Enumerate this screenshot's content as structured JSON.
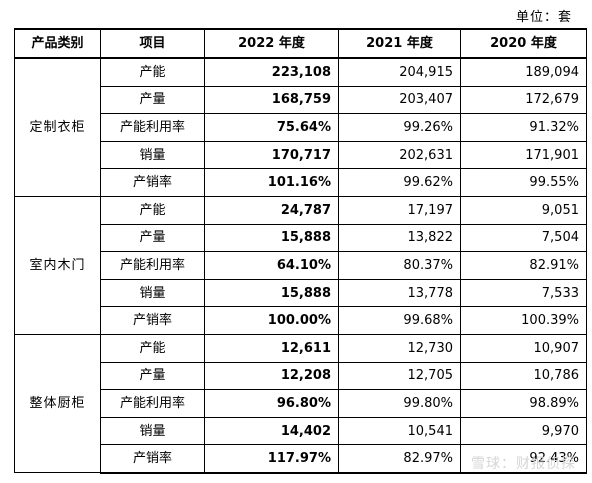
{
  "unit_label": "单位：套",
  "headers": [
    "产品类别",
    "项目",
    "2022 年度",
    "2021 年度",
    "2020 年度"
  ],
  "groups": [
    {
      "category": "定制衣柜",
      "rows": [
        {
          "item": "产能",
          "y2022": "223,108",
          "y2021": "204,915",
          "y2020": "189,094"
        },
        {
          "item": "产量",
          "y2022": "168,759",
          "y2021": "203,407",
          "y2020": "172,679"
        },
        {
          "item": "产能利用率",
          "y2022": "75.64%",
          "y2021": "99.26%",
          "y2020": "91.32%"
        },
        {
          "item": "销量",
          "y2022": "170,717",
          "y2021": "202,631",
          "y2020": "171,901"
        },
        {
          "item": "产销率",
          "y2022": "101.16%",
          "y2021": "99.62%",
          "y2020": "99.55%"
        }
      ]
    },
    {
      "category": "室内木门",
      "rows": [
        {
          "item": "产能",
          "y2022": "24,787",
          "y2021": "17,197",
          "y2020": "9,051"
        },
        {
          "item": "产量",
          "y2022": "15,888",
          "y2021": "13,822",
          "y2020": "7,504"
        },
        {
          "item": "产能利用率",
          "y2022": "64.10%",
          "y2021": "80.37%",
          "y2020": "82.91%"
        },
        {
          "item": "销量",
          "y2022": "15,888",
          "y2021": "13,778",
          "y2020": "7,533"
        },
        {
          "item": "产销率",
          "y2022": "100.00%",
          "y2021": "99.68%",
          "y2020": "100.39%"
        }
      ]
    },
    {
      "category": "整体厨柜",
      "rows": [
        {
          "item": "产能",
          "y2022": "12,611",
          "y2021": "12,730",
          "y2020": "10,907"
        },
        {
          "item": "产量",
          "y2022": "12,208",
          "y2021": "12,705",
          "y2020": "10,786"
        },
        {
          "item": "产能利用率",
          "y2022": "96.80%",
          "y2021": "99.80%",
          "y2020": "98.89%"
        },
        {
          "item": "销量",
          "y2022": "14,402",
          "y2021": "10,541",
          "y2020": "9,970"
        },
        {
          "item": "产销率",
          "y2022": "117.97%",
          "y2021": "82.97%",
          "y2020": "92.43%"
        }
      ]
    }
  ],
  "watermark": "雪球：财报侦探"
}
